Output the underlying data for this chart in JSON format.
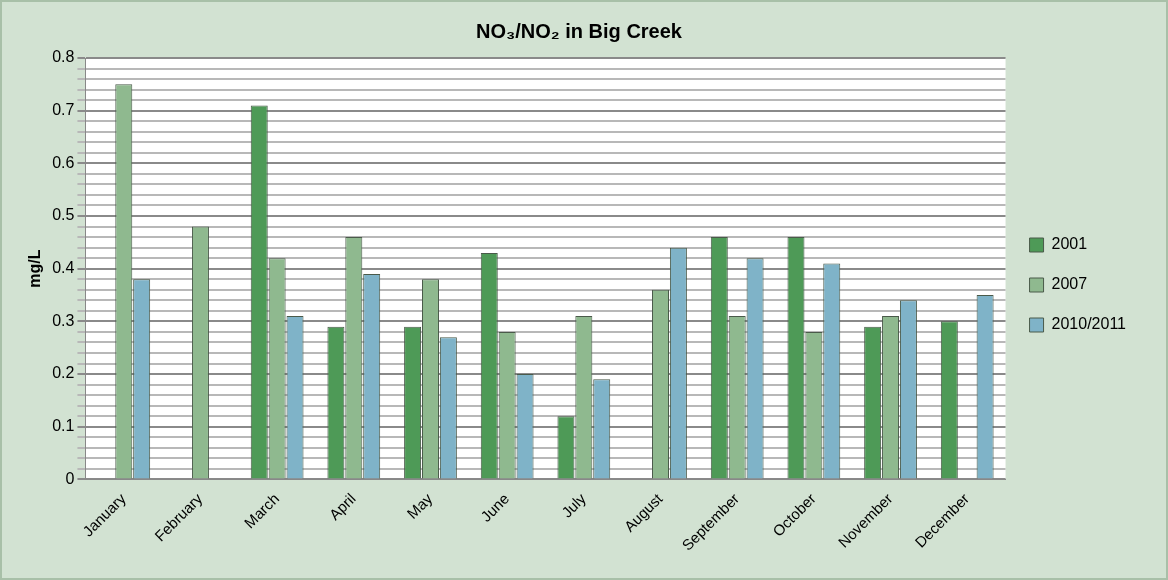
{
  "chart_data": {
    "type": "bar",
    "title": "NO₃/NO₂ in Big Creek",
    "ylabel": "mg/L",
    "categories": [
      "January",
      "February",
      "March",
      "April",
      "May",
      "June",
      "July",
      "August",
      "September",
      "October",
      "November",
      "December"
    ],
    "series": [
      {
        "name": "2001",
        "color": "#4e9a57",
        "values": [
          null,
          null,
          0.71,
          0.29,
          0.29,
          0.43,
          0.12,
          null,
          0.46,
          0.46,
          0.29,
          0.3
        ]
      },
      {
        "name": "2007",
        "color": "#8fb98f",
        "values": [
          0.75,
          0.48,
          0.42,
          0.46,
          0.38,
          0.28,
          0.31,
          0.36,
          0.31,
          0.28,
          0.31,
          null
        ]
      },
      {
        "name": "2010/2011",
        "color": "#7fb3c8",
        "values": [
          0.38,
          null,
          0.31,
          0.39,
          0.27,
          0.2,
          0.19,
          0.44,
          0.42,
          0.41,
          0.34,
          0.35
        ]
      }
    ],
    "ylim": [
      0,
      0.8
    ],
    "yticks": [
      0,
      {
        "value": 0.02,
        "label": null
      },
      {
        "value": 0.04,
        "label": null
      },
      {
        "value": 0.06,
        "label": null
      },
      {
        "value": 0.08,
        "label": null
      },
      0.1,
      {
        "value": 0.12,
        "label": null
      },
      {
        "value": 0.14,
        "label": null
      },
      {
        "value": 0.16,
        "label": null
      },
      {
        "value": 0.18,
        "label": null
      },
      0.2,
      {
        "value": 0.22,
        "label": null
      },
      {
        "value": 0.24,
        "label": null
      },
      {
        "value": 0.26,
        "label": null
      },
      {
        "value": 0.28,
        "label": null
      },
      0.3,
      {
        "value": 0.32,
        "label": null
      },
      {
        "value": 0.34,
        "label": null
      },
      {
        "value": 0.36,
        "label": null
      },
      {
        "value": 0.38,
        "label": null
      },
      0.4,
      {
        "value": 0.42,
        "label": null
      },
      {
        "value": 0.44,
        "label": null
      },
      {
        "value": 0.46,
        "label": null
      },
      {
        "value": 0.48,
        "label": null
      },
      0.5,
      {
        "value": 0.52,
        "label": null
      },
      {
        "value": 0.54,
        "label": null
      },
      {
        "value": 0.56,
        "label": null
      },
      {
        "value": 0.58,
        "label": null
      },
      0.6,
      {
        "value": 0.62,
        "label": null
      },
      {
        "value": 0.64,
        "label": null
      },
      {
        "value": 0.66,
        "label": null
      },
      {
        "value": 0.68,
        "label": null
      },
      0.7,
      {
        "value": 0.72,
        "label": null
      },
      {
        "value": 0.74,
        "label": null
      },
      {
        "value": 0.76,
        "label": null
      },
      {
        "value": 0.78,
        "label": null
      },
      0.8
    ],
    "grid": "y",
    "legend": "right"
  }
}
